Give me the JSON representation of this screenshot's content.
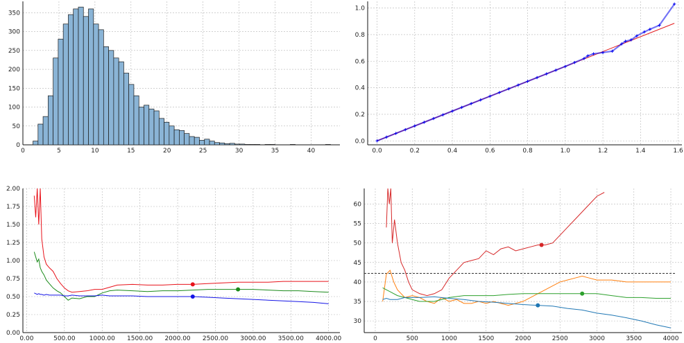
{
  "chart_data": [
    {
      "type": "bar",
      "title": "",
      "xlabel": "",
      "ylabel": "",
      "xlim": [
        0,
        44
      ],
      "ylim": [
        0,
        380
      ],
      "xticks": [
        0,
        5,
        10,
        15,
        20,
        25,
        30,
        35,
        40
      ],
      "yticks": [
        0,
        50,
        100,
        150,
        200,
        250,
        300,
        350
      ],
      "bin_width": 0.7,
      "bin_start": 1.4,
      "values": [
        10,
        55,
        75,
        130,
        230,
        280,
        320,
        345,
        360,
        365,
        340,
        360,
        320,
        305,
        260,
        250,
        230,
        220,
        190,
        160,
        130,
        100,
        105,
        95,
        90,
        70,
        60,
        50,
        40,
        38,
        30,
        22,
        20,
        12,
        15,
        10,
        6,
        5,
        3,
        4,
        2,
        2,
        1,
        1,
        1,
        0,
        1,
        1,
        0,
        0,
        0,
        1,
        0,
        0,
        0,
        0,
        0,
        0,
        1
      ],
      "colors": {
        "bar": "#8ab4d6",
        "edge": "#1a1a1a"
      },
      "grid": true
    },
    {
      "type": "scatter",
      "title": "",
      "xlabel": "",
      "ylabel": "",
      "xlim": [
        -0.05,
        1.62
      ],
      "ylim": [
        -0.03,
        1.05
      ],
      "xticks": [
        0.0,
        0.2,
        0.4,
        0.6,
        0.8,
        1.0,
        1.2,
        1.4,
        1.6
      ],
      "yticks": [
        0.0,
        0.2,
        0.4,
        0.6,
        0.8,
        1.0
      ],
      "tick_decimals": 1,
      "reference_line": {
        "x": [
          0.0,
          1.58
        ],
        "y": [
          0.0,
          0.885
        ],
        "color": "#e31a1c"
      },
      "points": {
        "x": [
          0.0,
          0.05,
          0.1,
          0.15,
          0.2,
          0.25,
          0.3,
          0.35,
          0.4,
          0.45,
          0.5,
          0.55,
          0.6,
          0.65,
          0.7,
          0.75,
          0.8,
          0.85,
          0.9,
          0.95,
          1.0,
          1.05,
          1.1,
          1.12,
          1.15,
          1.2,
          1.25,
          1.3,
          1.32,
          1.35,
          1.38,
          1.42,
          1.45,
          1.5,
          1.58
        ],
        "y": [
          0.0,
          0.028,
          0.056,
          0.084,
          0.112,
          0.14,
          0.168,
          0.196,
          0.224,
          0.252,
          0.28,
          0.308,
          0.336,
          0.364,
          0.392,
          0.42,
          0.448,
          0.476,
          0.504,
          0.532,
          0.56,
          0.59,
          0.62,
          0.64,
          0.655,
          0.665,
          0.675,
          0.73,
          0.75,
          0.76,
          0.79,
          0.82,
          0.84,
          0.87,
          1.03
        ],
        "color": "#0000ee",
        "marker": "+"
      },
      "grid": true
    },
    {
      "type": "line",
      "title": "",
      "xlabel": "",
      "ylabel": "",
      "xlim": [
        -50,
        4150
      ],
      "ylim": [
        0.0,
        2.0
      ],
      "xticks": [
        0,
        500,
        1000,
        1500,
        2000,
        2500,
        3000,
        3500,
        4000
      ],
      "yticks": [
        0.0,
        0.25,
        0.5,
        0.75,
        1.0,
        1.25,
        1.5,
        1.75,
        2.0
      ],
      "tick_decimals": 2,
      "x": [
        100,
        120,
        140,
        160,
        180,
        200,
        230,
        260,
        300,
        350,
        400,
        450,
        500,
        550,
        600,
        700,
        800,
        900,
        1000,
        1100,
        1200,
        1400,
        1600,
        1800,
        2000,
        2200,
        2400,
        2600,
        2800,
        3000,
        3200,
        3400,
        3600,
        3800,
        4000
      ],
      "series": [
        {
          "color": "#e8121a",
          "values": [
            1.9,
            1.6,
            2.0,
            1.5,
            2.0,
            1.3,
            1.05,
            0.95,
            0.9,
            0.85,
            0.75,
            0.68,
            0.62,
            0.58,
            0.56,
            0.57,
            0.58,
            0.6,
            0.6,
            0.63,
            0.66,
            0.67,
            0.66,
            0.66,
            0.67,
            0.67,
            0.68,
            0.69,
            0.7,
            0.7,
            0.7,
            0.71,
            0.71,
            0.71,
            0.71
          ]
        },
        {
          "color": "#1a8a1a",
          "values": [
            1.12,
            1.05,
            0.98,
            1.02,
            0.9,
            0.85,
            0.8,
            0.73,
            0.68,
            0.62,
            0.58,
            0.55,
            0.5,
            0.45,
            0.48,
            0.47,
            0.5,
            0.5,
            0.55,
            0.58,
            0.59,
            0.58,
            0.57,
            0.58,
            0.58,
            0.59,
            0.6,
            0.6,
            0.6,
            0.6,
            0.59,
            0.58,
            0.58,
            0.57,
            0.56
          ]
        },
        {
          "color": "#1414e6",
          "values": [
            0.55,
            0.54,
            0.53,
            0.54,
            0.53,
            0.53,
            0.52,
            0.53,
            0.52,
            0.52,
            0.52,
            0.52,
            0.51,
            0.51,
            0.52,
            0.51,
            0.51,
            0.51,
            0.52,
            0.51,
            0.51,
            0.51,
            0.5,
            0.5,
            0.5,
            0.5,
            0.49,
            0.48,
            0.47,
            0.46,
            0.45,
            0.44,
            0.43,
            0.42,
            0.4
          ]
        }
      ],
      "markers": [
        {
          "x": 2200,
          "y": 0.67,
          "color": "#e8121a"
        },
        {
          "x": 2800,
          "y": 0.6,
          "color": "#1a8a1a"
        },
        {
          "x": 2200,
          "y": 0.5,
          "color": "#1414e6"
        }
      ],
      "grid": true
    },
    {
      "type": "line",
      "title": "",
      "xlabel": "",
      "ylabel": "",
      "xlim": [
        -150,
        4150
      ],
      "ylim": [
        27,
        64
      ],
      "xticks": [
        0,
        500,
        1000,
        1500,
        2000,
        2500,
        3000,
        3500,
        4000
      ],
      "yticks": [
        30,
        35,
        40,
        45,
        50,
        55,
        60
      ],
      "tick_decimals": 0,
      "hline": {
        "y": 42.2,
        "color": "#333333",
        "style": "dashed"
      },
      "series": [
        {
          "color": "#d62728",
          "x": [
            150,
            170,
            190,
            210,
            230,
            260,
            300,
            350,
            400,
            450,
            500,
            600,
            700,
            800,
            900,
            1000,
            1100,
            1200,
            1300,
            1400,
            1500,
            1600,
            1700,
            1800,
            1900,
            2000,
            2100,
            2200,
            2300,
            2400,
            2500,
            2600,
            2700,
            2800,
            2900,
            3000,
            3100
          ],
          "values": [
            54,
            64,
            60,
            64,
            50,
            56,
            50,
            45,
            43,
            40,
            38,
            37,
            36.5,
            37,
            38,
            41,
            43,
            45,
            45.5,
            46,
            48,
            47,
            48.5,
            49,
            48,
            48.5,
            49,
            49.5,
            49.5,
            50,
            52,
            54,
            56,
            58,
            60,
            62,
            63
          ]
        },
        {
          "color": "#ff7f0e",
          "x": [
            100,
            150,
            200,
            250,
            300,
            350,
            400,
            500,
            600,
            700,
            800,
            900,
            1000,
            1100,
            1200,
            1300,
            1400,
            1500,
            1600,
            1700,
            1800,
            1900,
            2000,
            2100,
            2200,
            2300,
            2400,
            2500,
            2600,
            2700,
            2800,
            2900,
            3000,
            3200,
            3400,
            3600,
            3800,
            4000
          ],
          "values": [
            35,
            42,
            43,
            40,
            38,
            37,
            36,
            36.5,
            36,
            35,
            34.5,
            36,
            35,
            35.5,
            34.5,
            34.5,
            35,
            34.5,
            35,
            34.5,
            34,
            34.5,
            35,
            36,
            37,
            38,
            39,
            40,
            40.5,
            41,
            41.5,
            41,
            40.5,
            40.5,
            40,
            40,
            40,
            40
          ]
        },
        {
          "color": "#2ca02c",
          "x": [
            100,
            150,
            200,
            300,
            400,
            500,
            600,
            700,
            800,
            900,
            1000,
            1200,
            1400,
            1600,
            1800,
            2000,
            2200,
            2400,
            2600,
            2800,
            3000,
            3200,
            3400,
            3600,
            3800,
            4000
          ],
          "values": [
            38.5,
            38,
            37.5,
            36.5,
            36,
            35.5,
            35,
            35,
            35,
            35.5,
            36,
            36.5,
            36.5,
            36.5,
            36.8,
            37,
            37,
            37,
            37,
            37,
            37,
            36.5,
            36,
            36,
            35.8,
            35.8
          ]
        },
        {
          "color": "#1f77b4",
          "x": [
            100,
            150,
            200,
            300,
            400,
            500,
            600,
            800,
            1000,
            1200,
            1400,
            1600,
            1800,
            2000,
            2200,
            2400,
            2600,
            2800,
            3000,
            3200,
            3400,
            3600,
            3800,
            4000
          ],
          "values": [
            35.5,
            35.8,
            35.5,
            35.5,
            36,
            36,
            36,
            36.2,
            35.8,
            35.5,
            35,
            34.8,
            34.5,
            34.2,
            34,
            33.8,
            33.2,
            32.8,
            32,
            31.5,
            30.8,
            30,
            29,
            28.2
          ]
        }
      ],
      "markers": [
        {
          "x": 2250,
          "y": 49.5,
          "color": "#d62728"
        },
        {
          "x": 2800,
          "y": 37,
          "color": "#2ca02c"
        },
        {
          "x": 2200,
          "y": 34,
          "color": "#1f77b4"
        }
      ],
      "grid": true
    }
  ]
}
